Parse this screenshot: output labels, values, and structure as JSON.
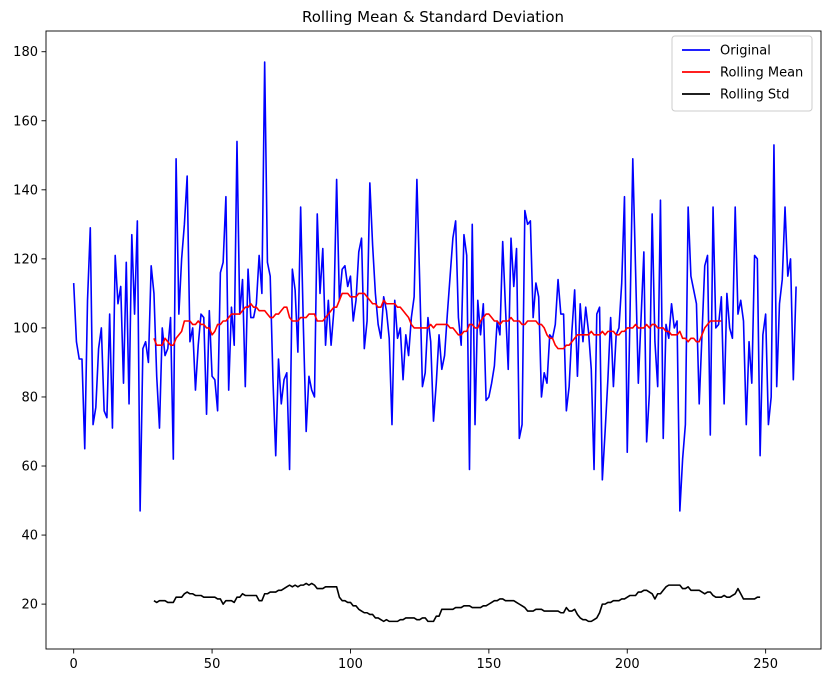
{
  "chart_data": {
    "type": "line",
    "title": "Rolling Mean & Standard Deviation",
    "xlabel": "",
    "ylabel": "",
    "xlim": [
      -10,
      270
    ],
    "ylim": [
      7,
      186
    ],
    "xticks": [
      0,
      50,
      100,
      150,
      200,
      250
    ],
    "yticks": [
      20,
      40,
      60,
      80,
      100,
      120,
      140,
      160,
      180
    ],
    "grid": false,
    "legend_position": "top-right",
    "series": [
      {
        "name": "Original",
        "color": "#0000ff",
        "x_start": 0,
        "values": [
          113,
          96,
          91,
          91,
          65,
          108,
          129,
          72,
          77,
          94,
          100,
          76,
          74,
          104,
          71,
          121,
          107,
          112,
          84,
          119,
          78,
          127,
          104,
          131,
          47,
          94,
          96,
          90,
          118,
          110,
          86,
          71,
          100,
          92,
          94,
          103,
          62,
          149,
          104,
          120,
          130,
          144,
          96,
          100,
          82,
          95,
          104,
          103,
          75,
          105,
          86,
          85,
          76,
          116,
          119,
          138,
          82,
          106,
          95,
          154,
          104,
          114,
          83,
          117,
          103,
          103,
          107,
          121,
          110,
          177,
          119,
          115,
          85,
          63,
          91,
          78,
          85,
          87,
          59,
          117,
          111,
          93,
          135,
          100,
          70,
          86,
          82,
          80,
          133,
          110,
          123,
          95,
          108,
          95,
          105,
          143,
          108,
          117,
          118,
          112,
          115,
          102,
          108,
          122,
          126,
          94,
          102,
          142,
          124,
          110,
          101,
          97,
          109,
          105,
          97,
          72,
          108,
          97,
          100,
          85,
          98,
          92,
          103,
          109,
          143,
          114,
          83,
          87,
          103,
          96,
          73,
          84,
          98,
          88,
          92,
          104,
          115,
          126,
          131,
          103,
          95,
          127,
          121,
          59,
          130,
          72,
          108,
          98,
          107,
          79,
          80,
          84,
          89,
          102,
          98,
          125,
          106,
          88,
          126,
          112,
          123,
          68,
          72,
          134,
          130,
          131,
          103,
          113,
          109,
          80,
          87,
          84,
          98,
          97,
          101,
          114,
          104,
          104,
          76,
          83,
          99,
          111,
          86,
          107,
          96,
          106,
          99,
          88,
          59,
          104,
          106,
          56,
          70,
          85,
          103,
          83,
          98,
          100,
          113,
          138,
          64,
          104,
          149,
          117,
          84,
          103,
          122,
          67,
          81,
          133,
          96,
          83,
          137,
          68,
          101,
          97,
          107,
          100,
          102,
          47,
          62,
          72,
          135,
          115,
          111,
          107,
          78,
          98,
          118,
          121,
          69,
          135,
          100,
          101,
          109,
          78,
          110,
          100,
          97,
          135,
          104,
          108,
          102,
          72,
          96,
          84,
          121,
          120,
          63,
          98,
          104,
          72,
          80,
          153,
          83,
          107,
          114,
          135,
          115,
          120,
          85,
          112
        ]
      },
      {
        "name": "Rolling Mean",
        "color": "#ff0000",
        "x_start": 29,
        "values": [
          97,
          95,
          95,
          95,
          97,
          96,
          95,
          95,
          97,
          98,
          99,
          102,
          102,
          102,
          101,
          101,
          102,
          101,
          101,
          100,
          100,
          98,
          99,
          101,
          101,
          102,
          102,
          103,
          104,
          104,
          104,
          104,
          105,
          106,
          106,
          107,
          106,
          106,
          105,
          105,
          105,
          104,
          103,
          103,
          104,
          104,
          105,
          106,
          106,
          103,
          102,
          102,
          102,
          103,
          103,
          103,
          104,
          104,
          104,
          102,
          102,
          102,
          103,
          104,
          105,
          106,
          106,
          108,
          110,
          110,
          110,
          109,
          109,
          109,
          110,
          110,
          110,
          109,
          108,
          107,
          107,
          106,
          106,
          108,
          107,
          107,
          107,
          107,
          106,
          106,
          105,
          104,
          103,
          101,
          100,
          100,
          100,
          100,
          100,
          100,
          101,
          100,
          101,
          101,
          101,
          101,
          101,
          100,
          100,
          99,
          98,
          98,
          99,
          99,
          101,
          101,
          100,
          100,
          102,
          103,
          104,
          104,
          103,
          102,
          102,
          101,
          102,
          102,
          102,
          103,
          102,
          102,
          102,
          101,
          101,
          102,
          102,
          102,
          102,
          101,
          101,
          100,
          98,
          97,
          97,
          95,
          94,
          94,
          94,
          95,
          95,
          96,
          97,
          98,
          98,
          98,
          98,
          98,
          99,
          98,
          98,
          98,
          99,
          98,
          99,
          99,
          99,
          98,
          98,
          99,
          99,
          100,
          100,
          100,
          101,
          100,
          100,
          100,
          101,
          100,
          101,
          101,
          100,
          100,
          100,
          99,
          99,
          98,
          98,
          98,
          99,
          97,
          97,
          96,
          97,
          97,
          96,
          96,
          98,
          100,
          101,
          102,
          102,
          102,
          102,
          102
        ]
      },
      {
        "name": "Rolling Std",
        "color": "#000000",
        "x_start": 29,
        "values": [
          21,
          20.5,
          21,
          21,
          21,
          20.5,
          20.5,
          20.5,
          22,
          22,
          22,
          23,
          23.5,
          23,
          23,
          22.5,
          22.5,
          22.5,
          22,
          22,
          22,
          22,
          22,
          21.5,
          21.5,
          20,
          21,
          21,
          21,
          20.5,
          22,
          22,
          23,
          22.5,
          22.5,
          22.5,
          22.5,
          22.5,
          21,
          21,
          23,
          23,
          23.5,
          23.5,
          23.5,
          24,
          24,
          24.5,
          25,
          25.5,
          25,
          25.5,
          25,
          25.5,
          25.5,
          26,
          25.5,
          26,
          25.5,
          24.5,
          24.5,
          24.5,
          25,
          25,
          25,
          25,
          25,
          22,
          21,
          21,
          20.5,
          20.5,
          19.5,
          19.5,
          18.5,
          18,
          17.5,
          17.5,
          17,
          17,
          16,
          16,
          15.5,
          15,
          15.5,
          15,
          15,
          15,
          15,
          15.5,
          15.5,
          16,
          16,
          16,
          16,
          15.5,
          15.5,
          16,
          16,
          15,
          15,
          15,
          16.5,
          16.5,
          18.5,
          18.5,
          18.5,
          18.5,
          18.5,
          19,
          19,
          19,
          19.5,
          19.5,
          19.5,
          19,
          19,
          19,
          19,
          19.5,
          19.5,
          20,
          20.5,
          21,
          21,
          21.5,
          21.5,
          21,
          21,
          21,
          21,
          20.5,
          20,
          19.5,
          19,
          18,
          18,
          18,
          18.5,
          18.5,
          18.5,
          18,
          18,
          18,
          18,
          18,
          18,
          17.5,
          17.5,
          19,
          18,
          18,
          18.5,
          17,
          16,
          15.5,
          15.5,
          15,
          15,
          15.5,
          16,
          17.5,
          20,
          20,
          20.5,
          20.5,
          21,
          21,
          21,
          21.5,
          21.5,
          22,
          22.5,
          22.5,
          22.5,
          23.5,
          23.5,
          24,
          24,
          23.5,
          23,
          21.5,
          23,
          23,
          24,
          25,
          25.5,
          25.5,
          25.5,
          25.5,
          25.5,
          24.5,
          24.5,
          25,
          24,
          24,
          24,
          24,
          23.5,
          23,
          23.5,
          23.5,
          22.5,
          22,
          22,
          22,
          22.5,
          22,
          22,
          22.5,
          23,
          24.5,
          23,
          21.5,
          21.5,
          21.5,
          21.5,
          21.5,
          22,
          22
        ]
      }
    ]
  }
}
